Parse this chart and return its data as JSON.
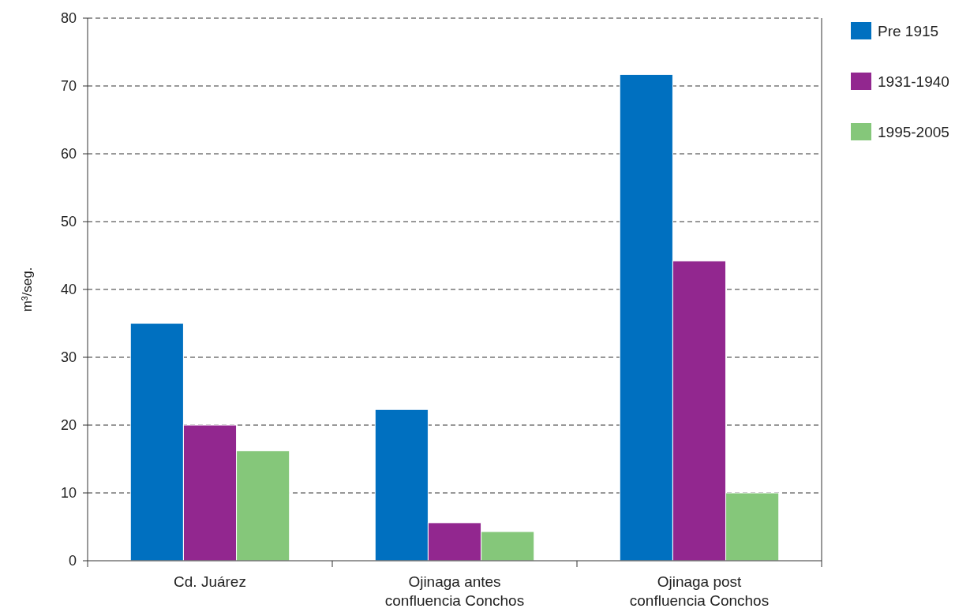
{
  "chart_data": {
    "type": "bar",
    "ylabel": "m³/seg.",
    "categories": [
      "Cd. Juárez",
      "Ojinaga antes confluencia Conchos",
      "Ojinaga post confluencia Conchos"
    ],
    "series": [
      {
        "name": "Pre 1915",
        "color": "#0070c0",
        "values": [
          35,
          22.3,
          71.7
        ]
      },
      {
        "name": "1931-1940",
        "color": "#92278f",
        "values": [
          20,
          5.6,
          44.2
        ]
      },
      {
        "name": "1995-2005",
        "color": "#85c77a",
        "values": [
          16.2,
          4.3,
          10
        ]
      }
    ],
    "ylim": [
      0,
      80
    ],
    "yticks": [
      0,
      10,
      20,
      30,
      40,
      50,
      60,
      70,
      80
    ],
    "grid": "y",
    "legend": "top right"
  }
}
